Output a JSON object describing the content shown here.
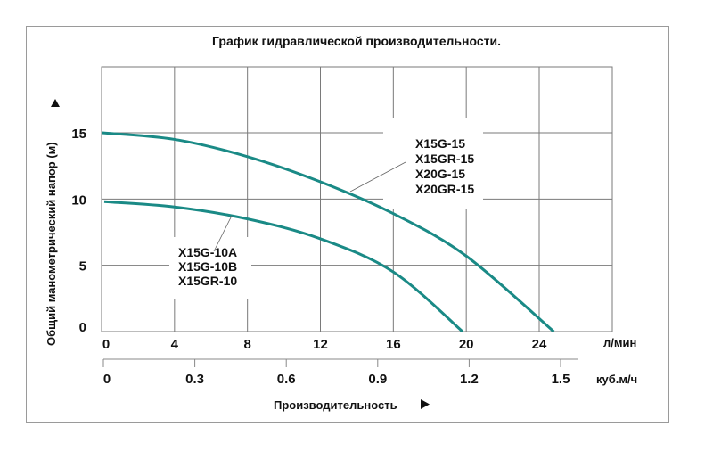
{
  "title": "График гидравлической производительности.",
  "chart_data": {
    "type": "line",
    "title": "График гидравлической производительности.",
    "xlabel": "Производительность",
    "ylabel": "Общий манометрический напор (м)",
    "x_unit_primary": "л/мин",
    "x_unit_secondary": "куб.м/ч",
    "xlim": [
      0,
      26.5
    ],
    "ylim": [
      0,
      20
    ],
    "x_ticks_primary": [
      "0",
      "4",
      "8",
      "12",
      "16",
      "20",
      "24"
    ],
    "x_ticks_secondary": [
      "0",
      "0.3",
      "0.6",
      "0.9",
      "1.2",
      "1.5"
    ],
    "y_ticks": [
      "0",
      "5",
      "10",
      "15"
    ],
    "grid": true,
    "series": [
      {
        "name": "X15G-15 / X15GR-15 / X20G-15 / X20GR-15",
        "labels": [
          "X15G-15",
          "X15GR-15",
          "X20G-15",
          "X20GR-15"
        ],
        "x": [
          0,
          4,
          8,
          12,
          16,
          20,
          24.8
        ],
        "y": [
          15.0,
          14.5,
          13.2,
          11.3,
          8.9,
          5.7,
          0
        ]
      },
      {
        "name": "X15G-10A / X15G-10B / X15GR-10",
        "labels": [
          "X15G-10A",
          "X15G-10B",
          "X15GR-10"
        ],
        "x": [
          0,
          4,
          8,
          12,
          16,
          19.8
        ],
        "y": [
          9.8,
          9.4,
          8.5,
          7.0,
          4.5,
          0
        ]
      }
    ],
    "colors": {
      "curve": "#1a8a86",
      "grid": "#7a7a7a"
    }
  }
}
